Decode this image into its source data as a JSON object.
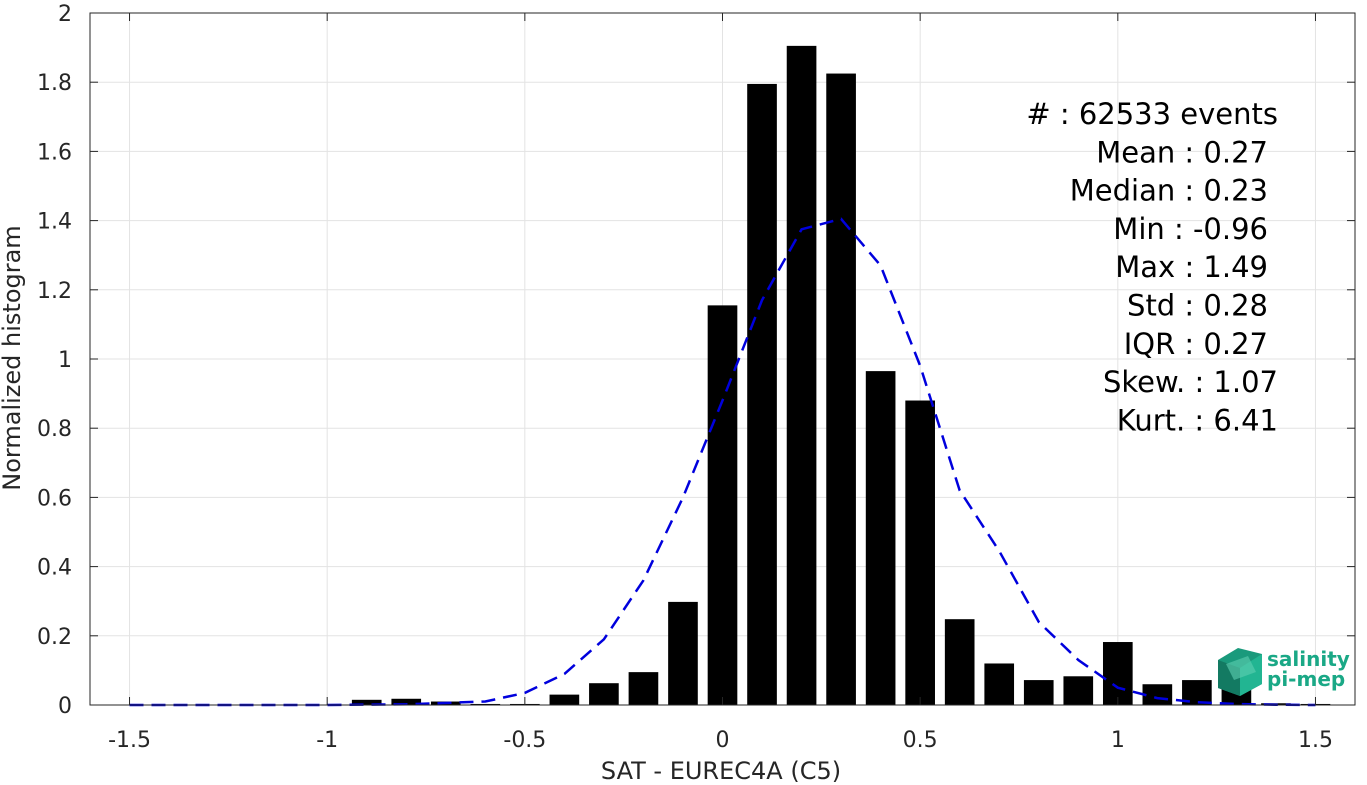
{
  "chart_data": {
    "type": "bar",
    "title": "",
    "xlabel": "SAT - EUREC4A (C5)",
    "ylabel": "Normalized histogram",
    "xlim": [
      -1.6,
      1.6
    ],
    "ylim": [
      0,
      2
    ],
    "grid": true,
    "x_ticks": [
      -1.5,
      -1,
      -0.5,
      0,
      0.5,
      1,
      1.5
    ],
    "x_tick_labels": [
      "-1.5",
      "-1",
      "-0.5",
      "0",
      "0.5",
      "1",
      "1.5"
    ],
    "y_ticks": [
      0,
      0.2,
      0.4,
      0.6,
      0.8,
      1,
      1.2,
      1.4,
      1.6,
      1.8,
      2
    ],
    "y_tick_labels": [
      "0",
      "0.2",
      "0.4",
      "0.6",
      "0.8",
      "1",
      "1.2",
      "1.4",
      "1.6",
      "1.8",
      "2"
    ],
    "bar_width": 0.075,
    "bar_color": "#000000",
    "bins": [
      {
        "x": -1.5,
        "value": 0.0
      },
      {
        "x": -1.4,
        "value": 0.0
      },
      {
        "x": -1.3,
        "value": 0.0
      },
      {
        "x": -1.2,
        "value": 0.0
      },
      {
        "x": -1.1,
        "value": 0.0
      },
      {
        "x": -1.0,
        "value": 0.0
      },
      {
        "x": -0.9,
        "value": 0.015
      },
      {
        "x": -0.8,
        "value": 0.018
      },
      {
        "x": -0.7,
        "value": 0.01
      },
      {
        "x": -0.6,
        "value": 0.003
      },
      {
        "x": -0.5,
        "value": 0.003
      },
      {
        "x": -0.4,
        "value": 0.03
      },
      {
        "x": -0.3,
        "value": 0.063
      },
      {
        "x": -0.2,
        "value": 0.095
      },
      {
        "x": -0.1,
        "value": 0.298
      },
      {
        "x": 0.0,
        "value": 1.155
      },
      {
        "x": 0.1,
        "value": 1.795
      },
      {
        "x": 0.2,
        "value": 1.905
      },
      {
        "x": 0.3,
        "value": 1.825
      },
      {
        "x": 0.4,
        "value": 0.965
      },
      {
        "x": 0.5,
        "value": 0.88
      },
      {
        "x": 0.6,
        "value": 0.248
      },
      {
        "x": 0.7,
        "value": 0.12
      },
      {
        "x": 0.8,
        "value": 0.072
      },
      {
        "x": 0.9,
        "value": 0.083
      },
      {
        "x": 1.0,
        "value": 0.182
      },
      {
        "x": 1.1,
        "value": 0.06
      },
      {
        "x": 1.2,
        "value": 0.072
      },
      {
        "x": 1.3,
        "value": 0.125
      },
      {
        "x": 1.4,
        "value": 0.005
      },
      {
        "x": 1.5,
        "value": 0.003
      }
    ],
    "fit_curve": {
      "style": "dashed",
      "color": "#0000dd",
      "points": [
        [
          -1.5,
          0.0
        ],
        [
          -1.3,
          0.0
        ],
        [
          -1.0,
          0.0
        ],
        [
          -0.8,
          0.002
        ],
        [
          -0.6,
          0.01
        ],
        [
          -0.5,
          0.035
        ],
        [
          -0.4,
          0.09
        ],
        [
          -0.3,
          0.19
        ],
        [
          -0.2,
          0.36
        ],
        [
          -0.1,
          0.6
        ],
        [
          0.0,
          0.88
        ],
        [
          0.1,
          1.17
        ],
        [
          0.2,
          1.375
        ],
        [
          0.3,
          1.405
        ],
        [
          0.4,
          1.27
        ],
        [
          0.5,
          0.98
        ],
        [
          0.6,
          0.62
        ],
        [
          0.7,
          0.445
        ],
        [
          0.8,
          0.24
        ],
        [
          0.9,
          0.13
        ],
        [
          1.0,
          0.05
        ],
        [
          1.1,
          0.02
        ],
        [
          1.2,
          0.008
        ],
        [
          1.3,
          0.003
        ],
        [
          1.4,
          0.001
        ],
        [
          1.5,
          0.0
        ]
      ]
    },
    "annotations": [
      "#  : 62533 events",
      "Mean : 0.27",
      "Median : 0.23",
      "Min : -0.96",
      "Max : 1.49",
      "Std : 0.28",
      "IQR : 0.27",
      "Skew. : 1.07",
      "Kurt. : 6.41"
    ]
  },
  "logo": {
    "line1": "salinity",
    "line2": "pi-mep"
  }
}
